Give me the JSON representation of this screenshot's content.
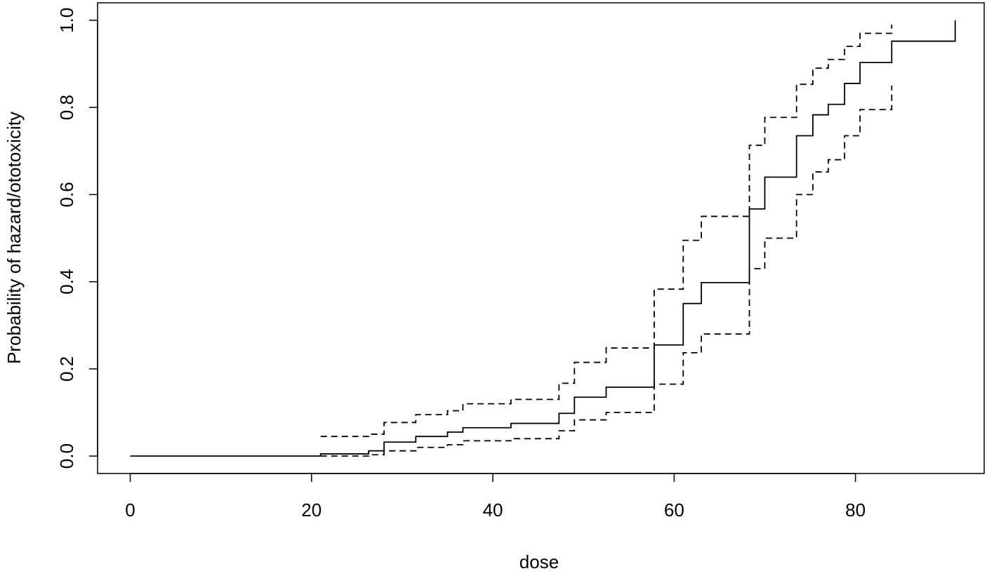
{
  "chart_data": {
    "type": "line",
    "title": "",
    "xlabel": "dose",
    "ylabel": "Probability of hazard/ototoxicity",
    "xlim": [
      -3.6,
      94.2
    ],
    "ylim": [
      -0.04,
      1.04
    ],
    "xticks": [
      0,
      20,
      40,
      60,
      80
    ],
    "yticks": [
      0.0,
      0.2,
      0.4,
      0.6,
      0.8,
      1.0
    ],
    "ytick_labels": [
      "0.0",
      "0.2",
      "0.4",
      "0.6",
      "0.8",
      "1.0"
    ],
    "grid": false,
    "legend": "none",
    "series": [
      {
        "style": "solid",
        "step": true,
        "points": [
          [
            0,
            0.0
          ],
          [
            21.0,
            0.005
          ],
          [
            26.3,
            0.012
          ],
          [
            28.0,
            0.032
          ],
          [
            31.5,
            0.045
          ],
          [
            35.0,
            0.055
          ],
          [
            36.7,
            0.065
          ],
          [
            42.0,
            0.075
          ],
          [
            47.3,
            0.098
          ],
          [
            49.0,
            0.135
          ],
          [
            52.5,
            0.158
          ],
          [
            57.8,
            0.255
          ],
          [
            61.0,
            0.35
          ],
          [
            63.0,
            0.398
          ],
          [
            68.3,
            0.567
          ],
          [
            70.0,
            0.64
          ],
          [
            73.5,
            0.735
          ],
          [
            75.3,
            0.783
          ],
          [
            77.0,
            0.807
          ],
          [
            78.8,
            0.855
          ],
          [
            80.5,
            0.903
          ],
          [
            84.0,
            0.952
          ],
          [
            91.0,
            1.0
          ]
        ]
      },
      {
        "style": "dashed",
        "step": true,
        "points": [
          [
            21.0,
            0.045
          ],
          [
            26.3,
            0.05
          ],
          [
            28.0,
            0.077
          ],
          [
            31.5,
            0.095
          ],
          [
            35.0,
            0.104
          ],
          [
            36.7,
            0.12
          ],
          [
            42.0,
            0.13
          ],
          [
            47.3,
            0.167
          ],
          [
            49.0,
            0.215
          ],
          [
            52.5,
            0.248
          ],
          [
            57.8,
            0.383
          ],
          [
            61.0,
            0.495
          ],
          [
            63.0,
            0.55
          ],
          [
            68.3,
            0.713
          ],
          [
            70.0,
            0.777
          ],
          [
            73.5,
            0.853
          ],
          [
            75.3,
            0.89
          ],
          [
            77.0,
            0.91
          ],
          [
            78.8,
            0.94
          ],
          [
            80.5,
            0.97
          ],
          [
            84.0,
            0.99
          ]
        ]
      },
      {
        "style": "dashed",
        "step": true,
        "points": [
          [
            21.0,
            0.0
          ],
          [
            26.3,
            0.003
          ],
          [
            28.0,
            0.012
          ],
          [
            31.5,
            0.02
          ],
          [
            35.0,
            0.026
          ],
          [
            36.7,
            0.035
          ],
          [
            42.0,
            0.04
          ],
          [
            47.3,
            0.058
          ],
          [
            49.0,
            0.083
          ],
          [
            52.5,
            0.1
          ],
          [
            57.8,
            0.165
          ],
          [
            61.0,
            0.237
          ],
          [
            63.0,
            0.28
          ],
          [
            68.3,
            0.43
          ],
          [
            70.0,
            0.5
          ],
          [
            73.5,
            0.6
          ],
          [
            75.3,
            0.652
          ],
          [
            77.0,
            0.68
          ],
          [
            78.8,
            0.735
          ],
          [
            80.5,
            0.795
          ],
          [
            84.0,
            0.85
          ]
        ]
      }
    ]
  }
}
